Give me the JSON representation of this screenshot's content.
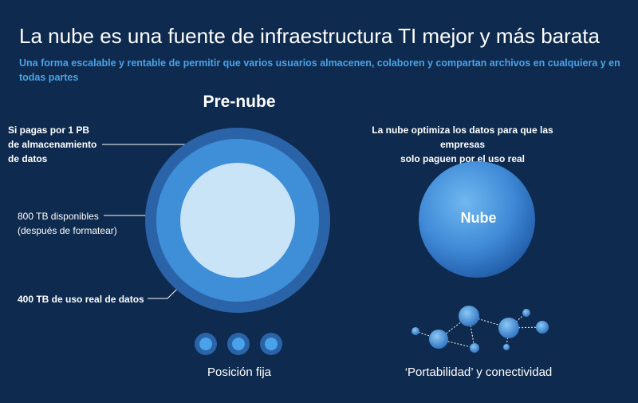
{
  "title": "La nube es una fuente de infraestructura TI mejor y más barata",
  "subtitle": "Una forma escalable y rentable de permitir que varios usuarios almacenen, colaboren y compartan archivos en cualquiera y en todas partes",
  "pre_cloud": {
    "heading": "Pre-nube",
    "label_1pb": [
      "Si pagas por 1 PB",
      "de almacenamiento",
      "de datos"
    ],
    "label_800tb": [
      "800 TB disponibles",
      "(después de formatear)"
    ],
    "label_400tb": "400 TB de uso real de datos",
    "caption": "Posición fija"
  },
  "cloud": {
    "description": [
      "La nube optimiza los datos para que las empresas",
      "solo paguen por el uso real"
    ],
    "circle_label": "Nube",
    "caption": "‘Portabilidad’ y conectividad"
  },
  "colors": {
    "background": "#0e2a4e",
    "accent": "#4aa3e8",
    "ring_outer": "#2a63a8",
    "ring_middle": "#3f8fd8",
    "core": "#c9e4f7"
  }
}
